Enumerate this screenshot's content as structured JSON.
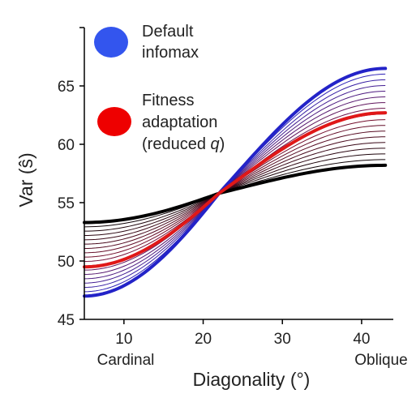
{
  "chart_data": {
    "type": "line",
    "xlabel": "Diagonality (°)",
    "ylabel": "Var (ŝ)",
    "xlim": [
      5,
      44
    ],
    "ylim": [
      45,
      70
    ],
    "x_ticks": [
      10,
      20,
      30,
      40
    ],
    "y_ticks": [
      45,
      50,
      55,
      60,
      65
    ],
    "x_end_labels": {
      "left": "Cardinal",
      "right": "Oblique"
    },
    "grid": false,
    "legend_position": "top-left",
    "x_domain": [
      5,
      43
    ],
    "crossing": {
      "x": 22,
      "y": 55.8
    },
    "series": [
      {
        "name": "Default infomax",
        "color": "#2323c8",
        "legend_color": "#3355ee",
        "y_start": 47.0,
        "y_end": 66.5,
        "emphasis": "thick"
      },
      {
        "name": "Fitness adaptation (reduced q)",
        "color": "#e01818",
        "legend_color": "#ee0000",
        "y_start": 49.5,
        "y_end": 62.7,
        "emphasis": "thick"
      },
      {
        "name": "",
        "color": "#000000",
        "y_start": 53.3,
        "y_end": 58.2,
        "emphasis": "thick"
      }
    ],
    "intermediate_curves": {
      "count": 16,
      "from": "#2323c8",
      "via": "#7a1030",
      "to": "#000000"
    }
  },
  "legend": {
    "items": [
      {
        "line1": "Default",
        "line2": "infomax",
        "line3": "",
        "color": "#3355ee"
      },
      {
        "line1": "Fitness",
        "line2": "adaptation",
        "line3": "(reduced q)",
        "color": "#ee0000"
      }
    ]
  }
}
